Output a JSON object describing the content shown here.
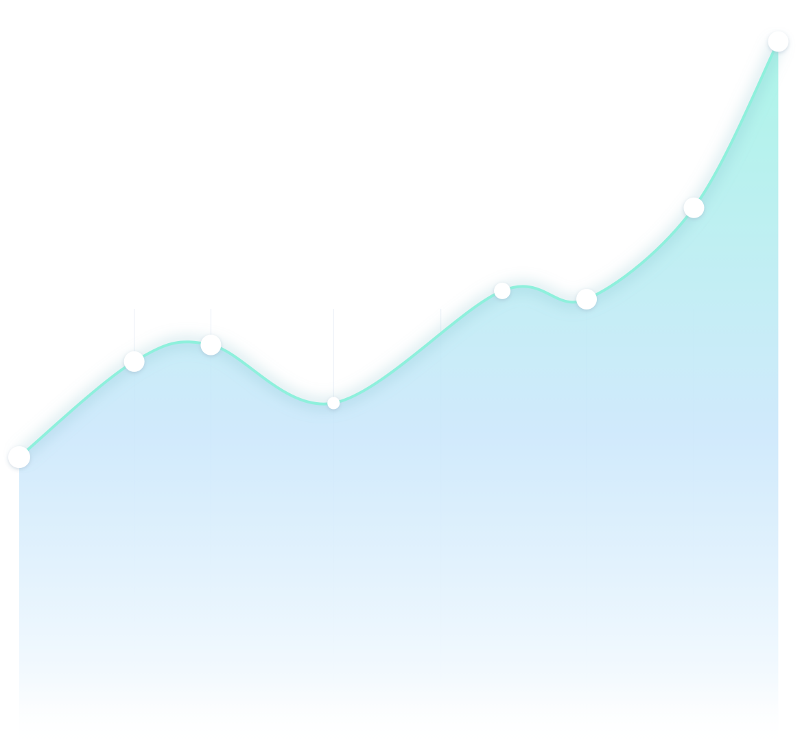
{
  "chart_data": {
    "type": "area",
    "title": "",
    "xlabel": "",
    "ylabel": "",
    "x": [
      0,
      1.5,
      2.5,
      4.1,
      6.3,
      7.4,
      8.8,
      9.9
    ],
    "values": [
      0,
      0.23,
      0.27,
      0.13,
      0.4,
      0.38,
      0.6,
      1.0
    ],
    "ylim": [
      -0.7,
      1.1
    ],
    "xlim": [
      0,
      9.95
    ],
    "grid": true,
    "legend": "none",
    "markers": [
      {
        "x": 0,
        "y": 0,
        "shape": "circle"
      },
      {
        "x": 1.5,
        "y": 0.23,
        "shape": "circle"
      },
      {
        "x": 2.5,
        "y": 0.27,
        "shape": "circle"
      },
      {
        "x": 4.1,
        "y": 0.13,
        "shape": "circle"
      },
      {
        "x": 6.3,
        "y": 0.4,
        "shape": "circle"
      },
      {
        "x": 7.4,
        "y": 0.38,
        "shape": "circle"
      },
      {
        "x": 8.8,
        "y": 0.6,
        "shape": "circle"
      },
      {
        "x": 9.9,
        "y": 1.0,
        "shape": "circle"
      }
    ],
    "colors": {
      "line": "#8ef0dc",
      "fill_top": "#9ef3e4",
      "fill_mid": "#c8e6fb",
      "fill_bottom": "#ffffff",
      "marker": "#ffffff",
      "grid": "#e9eef6"
    }
  }
}
